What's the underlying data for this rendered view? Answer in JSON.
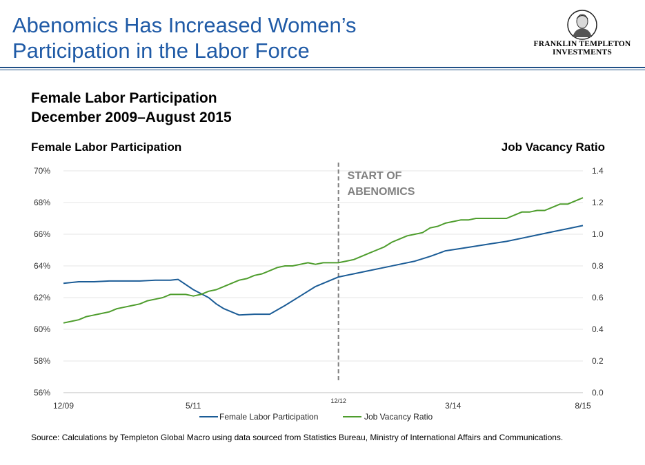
{
  "title": {
    "line1": "Abenomics Has Increased Women’s",
    "line2": "Participation in the Labor Force"
  },
  "logo": {
    "line1": "FRANKLIN TEMPLETON",
    "line2": "INVESTMENTS"
  },
  "colors": {
    "title": "#1f5aa6",
    "female_series": "#1b5c96",
    "vacancy_series": "#4e9d2d",
    "marker_line": "#7f7f7f"
  },
  "chart_data": {
    "type": "line",
    "title": "Female Labor Participation",
    "subtitle": "December 2009–August 2015",
    "ylabel_left": "Female Labor Participation",
    "ylabel_right": "Job Vacancy Ratio",
    "x_range": [
      "2009-12",
      "2015-08"
    ],
    "xticks": [
      {
        "label": "12/09",
        "x": "2009-12"
      },
      {
        "label": "5/11",
        "x": "2011-05"
      },
      {
        "label": "12/12",
        "x": "2012-12",
        "small": true
      },
      {
        "label": "3/14",
        "x": "2014-03"
      },
      {
        "label": "8/15",
        "x": "2015-08"
      }
    ],
    "ylim_left": [
      56,
      70
    ],
    "yticks_left": [
      "56%",
      "58%",
      "60%",
      "62%",
      "64%",
      "66%",
      "68%",
      "70%"
    ],
    "ylim_right": [
      0,
      1.4
    ],
    "yticks_right": [
      "0.0",
      "0.2",
      "0.4",
      "0.6",
      "0.8",
      "1.0",
      "1.2",
      "1.4"
    ],
    "grid": true,
    "legend_position": "bottom",
    "annotation": {
      "x": "2012-12",
      "line1": "START OF",
      "line2": "ABENOMICS"
    },
    "series": [
      {
        "name": "Female Labor Participation",
        "axis": "left",
        "points": [
          [
            "2009-12",
            62.9
          ],
          [
            "2010-02",
            63.0
          ],
          [
            "2010-04",
            63.0
          ],
          [
            "2010-06",
            63.05
          ],
          [
            "2010-08",
            63.05
          ],
          [
            "2010-10",
            63.05
          ],
          [
            "2010-12",
            63.1
          ],
          [
            "2011-02",
            63.1
          ],
          [
            "2011-03",
            63.15
          ],
          [
            "2011-05",
            62.5
          ],
          [
            "2011-07",
            62.0
          ],
          [
            "2011-08",
            61.6
          ],
          [
            "2011-09",
            61.3
          ],
          [
            "2011-11",
            60.9
          ],
          [
            "2012-01",
            60.95
          ],
          [
            "2012-03",
            60.95
          ],
          [
            "2012-05",
            61.5
          ],
          [
            "2012-07",
            62.1
          ],
          [
            "2012-09",
            62.7
          ],
          [
            "2012-12",
            63.3
          ],
          [
            "2013-02",
            63.5
          ],
          [
            "2013-04",
            63.7
          ],
          [
            "2013-06",
            63.9
          ],
          [
            "2013-08",
            64.1
          ],
          [
            "2013-10",
            64.3
          ],
          [
            "2013-12",
            64.6
          ],
          [
            "2014-02",
            64.95
          ],
          [
            "2014-04",
            65.1
          ],
          [
            "2014-06",
            65.25
          ],
          [
            "2014-08",
            65.4
          ],
          [
            "2014-10",
            65.55
          ],
          [
            "2014-12",
            65.75
          ],
          [
            "2015-02",
            65.95
          ],
          [
            "2015-04",
            66.15
          ],
          [
            "2015-06",
            66.35
          ],
          [
            "2015-08",
            66.55
          ]
        ]
      },
      {
        "name": "Job Vacancy Ratio",
        "axis": "right",
        "points": [
          [
            "2009-12",
            0.44
          ],
          [
            "2010-01",
            0.45
          ],
          [
            "2010-02",
            0.46
          ],
          [
            "2010-03",
            0.48
          ],
          [
            "2010-04",
            0.49
          ],
          [
            "2010-05",
            0.5
          ],
          [
            "2010-06",
            0.51
          ],
          [
            "2010-07",
            0.53
          ],
          [
            "2010-08",
            0.54
          ],
          [
            "2010-09",
            0.55
          ],
          [
            "2010-10",
            0.56
          ],
          [
            "2010-11",
            0.58
          ],
          [
            "2010-12",
            0.59
          ],
          [
            "2011-01",
            0.6
          ],
          [
            "2011-02",
            0.62
          ],
          [
            "2011-03",
            0.62
          ],
          [
            "2011-04",
            0.62
          ],
          [
            "2011-05",
            0.61
          ],
          [
            "2011-06",
            0.62
          ],
          [
            "2011-07",
            0.64
          ],
          [
            "2011-08",
            0.65
          ],
          [
            "2011-09",
            0.67
          ],
          [
            "2011-10",
            0.69
          ],
          [
            "2011-11",
            0.71
          ],
          [
            "2011-12",
            0.72
          ],
          [
            "2012-01",
            0.74
          ],
          [
            "2012-02",
            0.75
          ],
          [
            "2012-03",
            0.77
          ],
          [
            "2012-04",
            0.79
          ],
          [
            "2012-05",
            0.8
          ],
          [
            "2012-06",
            0.8
          ],
          [
            "2012-07",
            0.81
          ],
          [
            "2012-08",
            0.82
          ],
          [
            "2012-09",
            0.81
          ],
          [
            "2012-10",
            0.82
          ],
          [
            "2012-11",
            0.82
          ],
          [
            "2012-12",
            0.82
          ],
          [
            "2013-01",
            0.83
          ],
          [
            "2013-02",
            0.84
          ],
          [
            "2013-03",
            0.86
          ],
          [
            "2013-04",
            0.88
          ],
          [
            "2013-05",
            0.9
          ],
          [
            "2013-06",
            0.92
          ],
          [
            "2013-07",
            0.95
          ],
          [
            "2013-08",
            0.97
          ],
          [
            "2013-09",
            0.99
          ],
          [
            "2013-10",
            1.0
          ],
          [
            "2013-11",
            1.01
          ],
          [
            "2013-12",
            1.04
          ],
          [
            "2014-01",
            1.05
          ],
          [
            "2014-02",
            1.07
          ],
          [
            "2014-03",
            1.08
          ],
          [
            "2014-04",
            1.09
          ],
          [
            "2014-05",
            1.09
          ],
          [
            "2014-06",
            1.1
          ],
          [
            "2014-07",
            1.1
          ],
          [
            "2014-08",
            1.1
          ],
          [
            "2014-09",
            1.1
          ],
          [
            "2014-10",
            1.1
          ],
          [
            "2014-11",
            1.12
          ],
          [
            "2014-12",
            1.14
          ],
          [
            "2015-01",
            1.14
          ],
          [
            "2015-02",
            1.15
          ],
          [
            "2015-03",
            1.15
          ],
          [
            "2015-04",
            1.17
          ],
          [
            "2015-05",
            1.19
          ],
          [
            "2015-06",
            1.19
          ],
          [
            "2015-07",
            1.21
          ],
          [
            "2015-08",
            1.23
          ]
        ]
      }
    ]
  },
  "source": "Source: Calculations by Templeton Global Macro using data sourced from Statistics Bureau, Ministry of International Affairs and Communications."
}
